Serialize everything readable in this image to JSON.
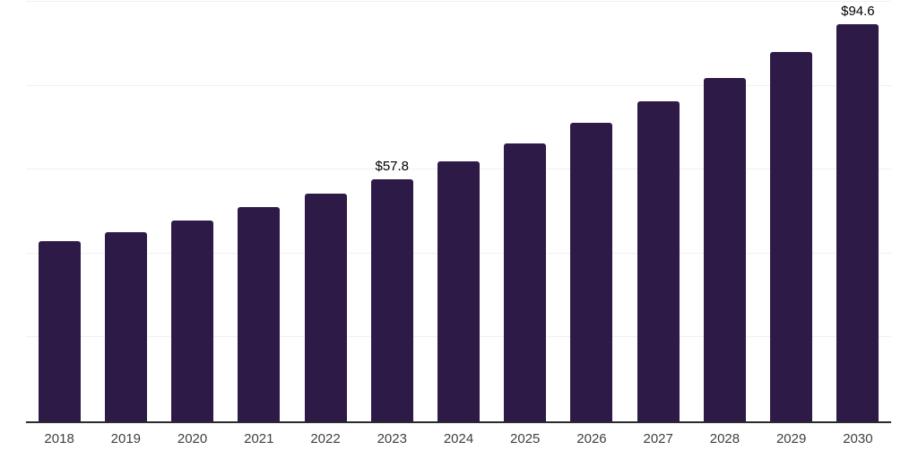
{
  "chart_style": {
    "background": "#ffffff",
    "bar_color": "#2e1a47",
    "gridline_color": "#f0f0f0",
    "axis_line_color": "#2b2b2b",
    "tick_label_color": "#404040",
    "value_label_color": "#000000"
  },
  "chart_data": {
    "type": "bar",
    "title": "",
    "xlabel": "",
    "ylabel": "",
    "categories": [
      "2018",
      "2019",
      "2020",
      "2021",
      "2022",
      "2023",
      "2024",
      "2025",
      "2026",
      "2027",
      "2028",
      "2029",
      "2030"
    ],
    "values": [
      42.9,
      45.1,
      47.8,
      51.0,
      54.2,
      57.8,
      61.9,
      66.3,
      71.1,
      76.3,
      81.9,
      88.0,
      94.6
    ],
    "data_labels": [
      null,
      null,
      null,
      null,
      null,
      "$57.8",
      null,
      null,
      null,
      null,
      null,
      null,
      "$94.6"
    ],
    "value_prefix": "$",
    "ylim": [
      0,
      100
    ],
    "gridline_values": [
      20,
      40,
      60,
      80,
      100
    ],
    "grid": true,
    "legend_position": "none",
    "x_axis_line": true,
    "y_axis_labels_visible": false
  }
}
